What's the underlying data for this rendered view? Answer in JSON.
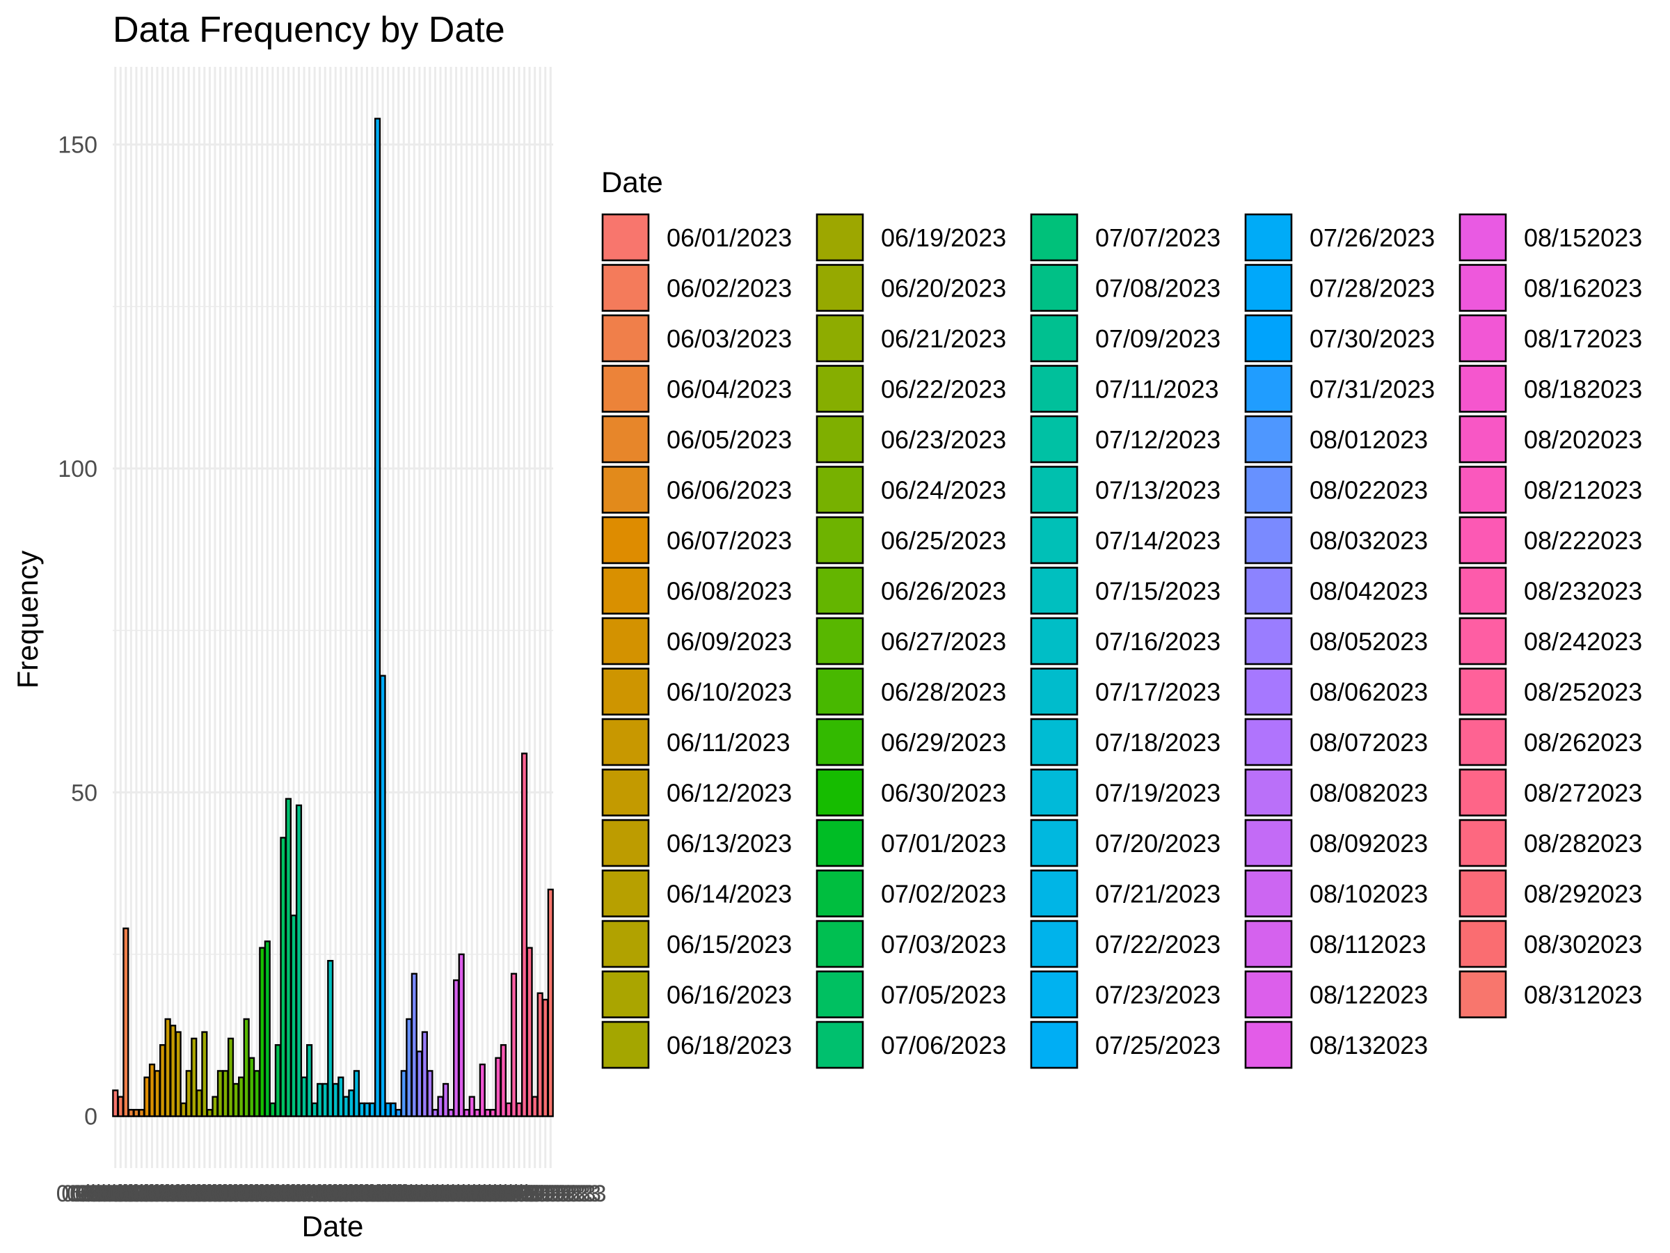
{
  "chart_data": {
    "type": "bar",
    "title": "Data Frequency by Date",
    "xlabel": "Date",
    "ylabel": "Frequency",
    "ylim": [
      -8,
      162
    ],
    "yticks": [
      0,
      50,
      100,
      150
    ],
    "grid": true,
    "legend": {
      "title": "Date",
      "placement": "right",
      "columns": 5
    },
    "categories": [
      "06/01/2023",
      "06/02/2023",
      "06/03/2023",
      "06/04/2023",
      "06/05/2023",
      "06/06/2023",
      "06/07/2023",
      "06/08/2023",
      "06/09/2023",
      "06/10/2023",
      "06/11/2023",
      "06/12/2023",
      "06/13/2023",
      "06/14/2023",
      "06/15/2023",
      "06/16/2023",
      "06/18/2023",
      "06/19/2023",
      "06/20/2023",
      "06/21/2023",
      "06/22/2023",
      "06/23/2023",
      "06/24/2023",
      "06/25/2023",
      "06/26/2023",
      "06/27/2023",
      "06/28/2023",
      "06/29/2023",
      "06/30/2023",
      "07/01/2023",
      "07/02/2023",
      "07/03/2023",
      "07/05/2023",
      "07/06/2023",
      "07/07/2023",
      "07/08/2023",
      "07/09/2023",
      "07/11/2023",
      "07/12/2023",
      "07/13/2023",
      "07/14/2023",
      "07/15/2023",
      "07/16/2023",
      "07/17/2023",
      "07/18/2023",
      "07/19/2023",
      "07/20/2023",
      "07/21/2023",
      "07/22/2023",
      "07/23/2023",
      "07/25/2023",
      "07/26/2023",
      "07/28/2023",
      "07/30/2023",
      "07/31/2023",
      "08/012023",
      "08/022023",
      "08/032023",
      "08/042023",
      "08/052023",
      "08/062023",
      "08/072023",
      "08/082023",
      "08/092023",
      "08/102023",
      "08/112023",
      "08/122023",
      "08/132023",
      "08/152023",
      "08/162023",
      "08/172023",
      "08/182023",
      "08/202023",
      "08/212023",
      "08/222023",
      "08/232023",
      "08/242023",
      "08/252023",
      "08/262023",
      "08/272023",
      "08/282023",
      "08/292023",
      "08/302023",
      "08/312023"
    ],
    "values": [
      4,
      3,
      29,
      1,
      1,
      1,
      6,
      8,
      7,
      11,
      15,
      14,
      13,
      2,
      7,
      12,
      4,
      13,
      1,
      3,
      7,
      7,
      12,
      5,
      6,
      15,
      9,
      7,
      26,
      27,
      2,
      11,
      43,
      49,
      31,
      48,
      6,
      11,
      2,
      5,
      5,
      24,
      5,
      6,
      3,
      4,
      7,
      2,
      2,
      2,
      154,
      68,
      2,
      2,
      1,
      7,
      15,
      22,
      10,
      13,
      7,
      1,
      3,
      5,
      1,
      21,
      25,
      1,
      3,
      1,
      8,
      1,
      1,
      9,
      11,
      2,
      22,
      2,
      56,
      26,
      3,
      19,
      18,
      35
    ],
    "bar_colors": [
      "#F8766D",
      "#F47B5B",
      "#F07F4A",
      "#EC8339",
      "#E7862A",
      "#E28A1B",
      "#DE8C00",
      "#D99000",
      "#D39200",
      "#CE9500",
      "#C89800",
      "#C39A00",
      "#BD9C00",
      "#B7A000",
      "#B1A200",
      "#AAA500",
      "#A4A600",
      "#9DA700",
      "#96A900",
      "#8EAC00",
      "#86AE00",
      "#7FAF00",
      "#77B100",
      "#6EB300",
      "#64B500",
      "#58B700",
      "#48B800",
      "#33BA00",
      "#16BC00",
      "#00BD25",
      "#00BE3F",
      "#00BF51",
      "#00C061",
      "#00C06E",
      "#00C17A",
      "#00C086",
      "#00C090",
      "#00C09B",
      "#00C1A4",
      "#00C0AE",
      "#00C0B7",
      "#00BFBF",
      "#00BEC6",
      "#00BCCC",
      "#00BCD3",
      "#00BAD9",
      "#00B8DF",
      "#00B5E6",
      "#00B3EB",
      "#00B2F0",
      "#00AEF4",
      "#00ABF7",
      "#00A8FA",
      "#00A3FC",
      "#209DFF",
      "#4E97FF",
      "#6791FF",
      "#7A8AFF",
      "#8C83FF",
      "#9A7DFF",
      "#A678FF",
      "#B074FD",
      "#BA70F9",
      "#C36BF6",
      "#CC66F2",
      "#D562EE",
      "#DC5FEB",
      "#E35CE8",
      "#E95AE3",
      "#EE58DC",
      "#F257D5",
      "#F556CE",
      "#F857C5",
      "#FA58BD",
      "#FC59B4",
      "#FD5BAB",
      "#FE5EA3",
      "#FF619A",
      "#FE6392",
      "#FE6588",
      "#FD6880",
      "#FB6A78",
      "#FA6D71",
      "#F8766D"
    ]
  }
}
